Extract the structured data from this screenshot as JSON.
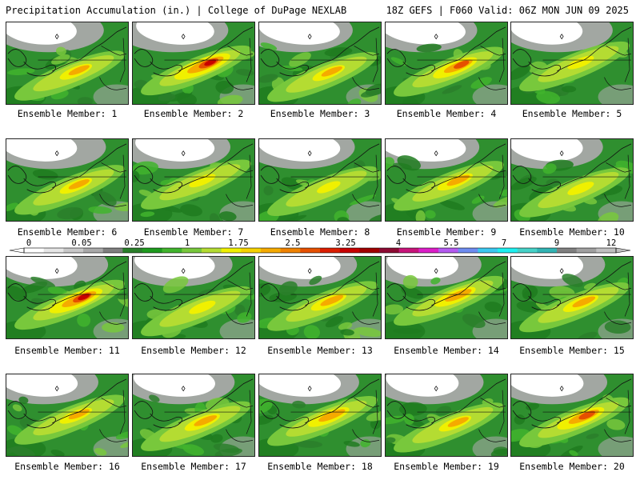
{
  "header": {
    "title": "Precipitation Accumulation (in.) | College of DuPage NEXLAB",
    "run_info": "18Z GEFS | F060 Valid: 06Z MON JUN 09 2025"
  },
  "colorbar": {
    "labels": [
      "0",
      "0.05",
      "0.25",
      "1",
      "1.75",
      "2.5",
      "3.25",
      "4",
      "5.5",
      "7",
      "9",
      "12"
    ],
    "colors": [
      "#ffffff",
      "#e6e6e6",
      "#c8c8c8",
      "#a9a9a9",
      "#7f7f7f",
      "#2a7f2a",
      "#1e9b1e",
      "#41b42d",
      "#78c83c",
      "#b4dc32",
      "#f0f000",
      "#f5d200",
      "#f5aa00",
      "#f08200",
      "#e65000",
      "#dc1e00",
      "#c80000",
      "#a00000",
      "#8c0a32",
      "#c8147a",
      "#dc1ec8",
      "#b45af0",
      "#6e8cf0",
      "#3cc8f0",
      "#1ef0f0",
      "#46d2c8",
      "#32b4b4",
      "#808080",
      "#a0a0a0",
      "#c0c0c0"
    ]
  },
  "panels": [
    {
      "label": "Ensemble Member: 1",
      "intensity": 0.55
    },
    {
      "label": "Ensemble Member: 2",
      "intensity": 0.95
    },
    {
      "label": "Ensemble Member: 3",
      "intensity": 0.55
    },
    {
      "label": "Ensemble Member: 4",
      "intensity": 0.75
    },
    {
      "label": "Ensemble Member: 5",
      "intensity": 0.45
    },
    {
      "label": "Ensemble Member: 6",
      "intensity": 0.55
    },
    {
      "label": "Ensemble Member: 7",
      "intensity": 0.45
    },
    {
      "label": "Ensemble Member: 8",
      "intensity": 0.4
    },
    {
      "label": "Ensemble Member: 9",
      "intensity": 0.6
    },
    {
      "label": "Ensemble Member: 10",
      "intensity": 0.45
    },
    {
      "label": "Ensemble Member: 11",
      "intensity": 0.9
    },
    {
      "label": "Ensemble Member: 12",
      "intensity": 0.45
    },
    {
      "label": "Ensemble Member: 13",
      "intensity": 0.6
    },
    {
      "label": "Ensemble Member: 14",
      "intensity": 0.7
    },
    {
      "label": "Ensemble Member: 15",
      "intensity": 0.6
    },
    {
      "label": "Ensemble Member: 16",
      "intensity": 0.55
    },
    {
      "label": "Ensemble Member: 17",
      "intensity": 0.6
    },
    {
      "label": "Ensemble Member: 18",
      "intensity": 0.7
    },
    {
      "label": "Ensemble Member: 19",
      "intensity": 0.55
    },
    {
      "label": "Ensemble Member: 20",
      "intensity": 0.8
    }
  ]
}
